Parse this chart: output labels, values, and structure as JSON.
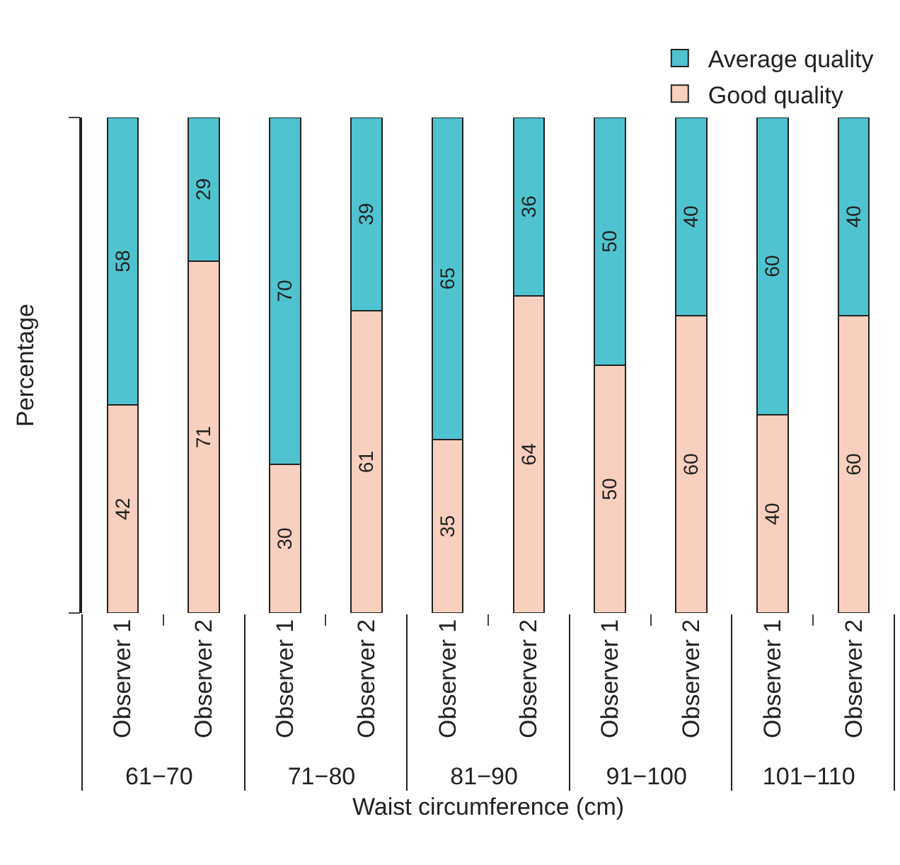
{
  "chart_data": {
    "type": "bar",
    "stacked": true,
    "xlabel": "Waist circumference (cm)",
    "ylabel": "Percentage",
    "categories": [
      "Observer 1",
      "Observer 2",
      "Observer 1",
      "Observer 2",
      "Observer 1",
      "Observer 2",
      "Observer 1",
      "Observer 2",
      "Observer 1",
      "Observer 2"
    ],
    "annotations": [
      "61−70",
      "71−80",
      "81−90",
      "91−100",
      "101−110"
    ],
    "series": [
      {
        "name": "Good quality",
        "color": "#f9cfbd",
        "values": [
          42,
          71,
          30,
          61,
          35,
          64,
          50,
          60,
          40,
          60
        ]
      },
      {
        "name": "Average quality",
        "color": "#4fc3cf",
        "values": [
          58,
          29,
          70,
          39,
          65,
          36,
          50,
          40,
          60,
          40
        ]
      }
    ],
    "data_labels": true,
    "ylim": [
      0,
      100
    ],
    "yticks": [
      {
        "value": 0,
        "label": null
      },
      {
        "value": 100,
        "label": null
      }
    ],
    "tick_labels": "x",
    "legend": "top right"
  }
}
